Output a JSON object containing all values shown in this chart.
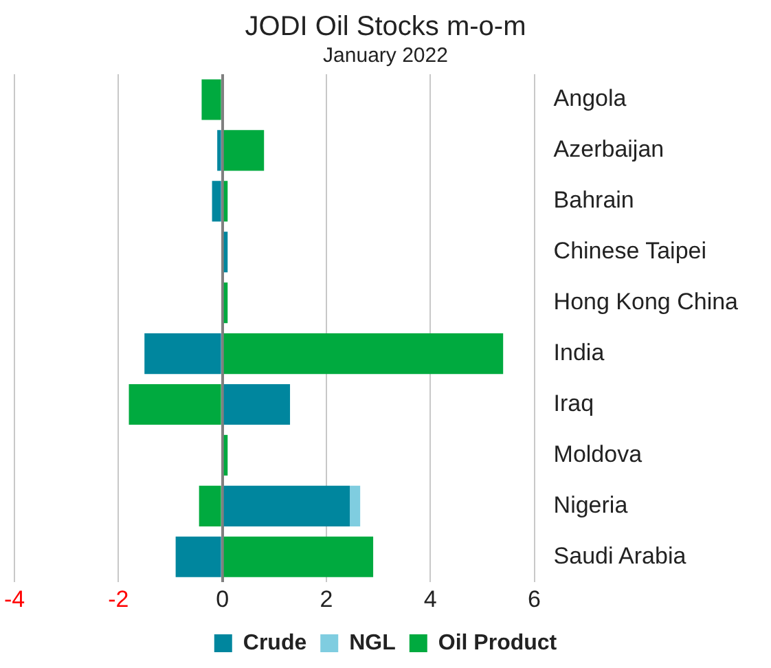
{
  "chart_data": {
    "type": "bar",
    "orientation": "horizontal",
    "stacked": true,
    "title": "JODI Oil Stocks m-o-m",
    "subtitle": "January 2022",
    "categories": [
      "Angola",
      "Azerbaijan",
      "Bahrain",
      "Chinese Taipei",
      "Hong Kong China",
      "India",
      "Iraq",
      "Moldova",
      "Nigeria",
      "Saudi Arabia"
    ],
    "series": [
      {
        "name": "Crude",
        "color": "#00869e",
        "values": [
          0,
          -0.1,
          -0.2,
          0.1,
          0,
          -1.5,
          1.3,
          0,
          2.45,
          -0.9
        ]
      },
      {
        "name": "NGL",
        "color": "#7fcde0",
        "values": [
          0,
          0,
          0,
          0,
          0,
          0,
          0,
          0,
          0.2,
          0
        ]
      },
      {
        "name": "Oil Product",
        "color": "#00aa3f",
        "values": [
          -0.4,
          0.8,
          0.1,
          0,
          0.1,
          5.4,
          -1.8,
          0.1,
          -0.45,
          2.9
        ]
      }
    ],
    "xlim": [
      -4,
      6
    ],
    "xticks": [
      -4,
      -2,
      0,
      2,
      4,
      6
    ],
    "grid": "x",
    "legend": "bottom"
  }
}
